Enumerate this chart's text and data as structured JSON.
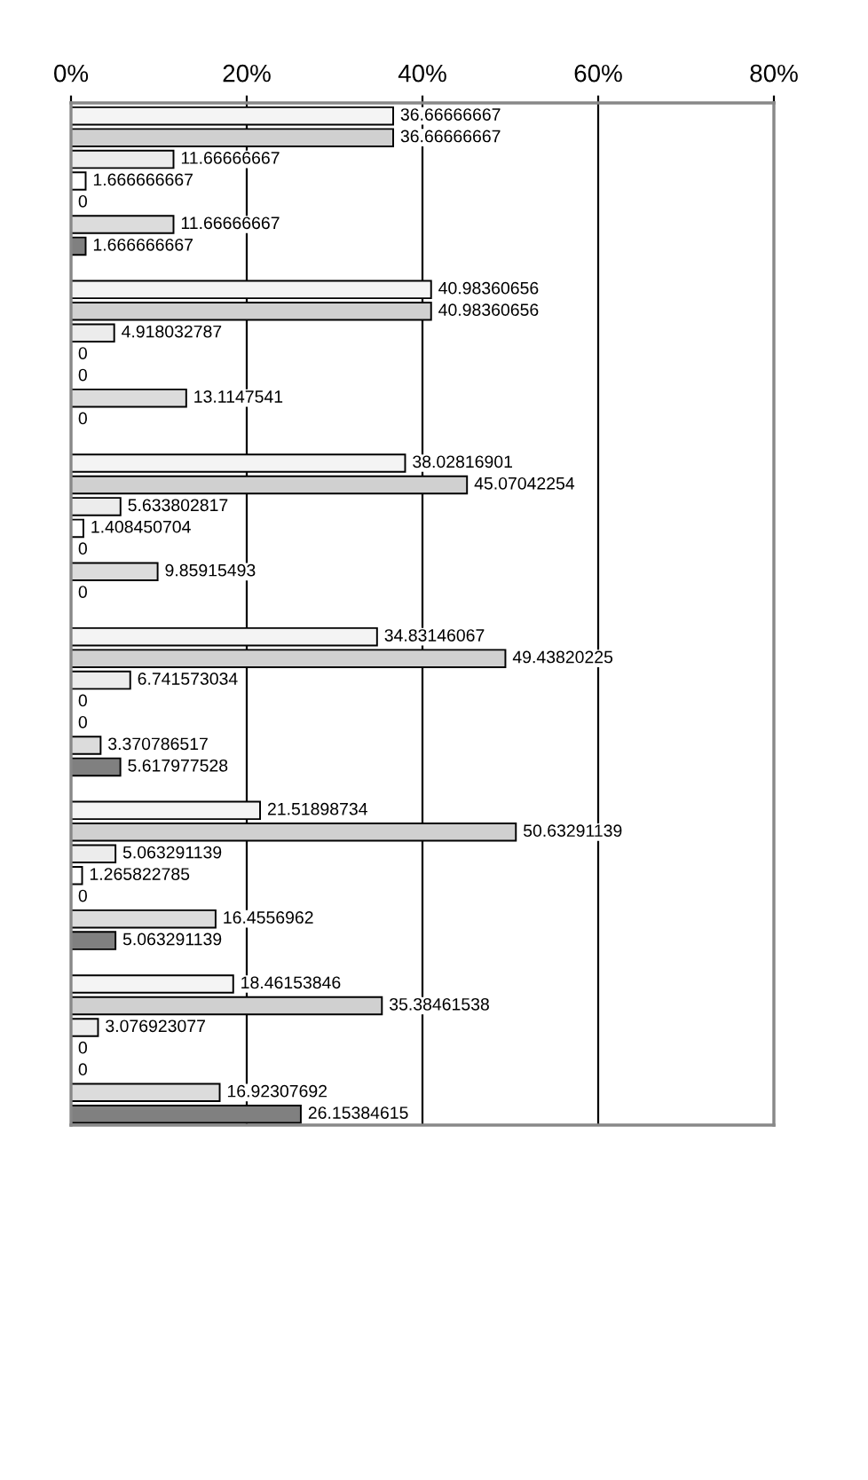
{
  "chart_data": {
    "type": "bar",
    "orientation": "horizontal",
    "categories": [
      null,
      null,
      null,
      null,
      null,
      null
    ],
    "series": [
      {
        "color": "#f4f4f4",
        "values": [
          36.66666667,
          40.98360656,
          38.02816901,
          34.83146067,
          21.51898734,
          18.46153846
        ]
      },
      {
        "color": "#d0d0d0",
        "values": [
          36.66666667,
          40.98360656,
          45.07042254,
          49.43820225,
          50.63291139,
          35.38461538
        ]
      },
      {
        "color": "#ececec",
        "values": [
          11.66666667,
          4.918032787,
          5.633802817,
          6.741573034,
          5.063291139,
          3.076923077
        ]
      },
      {
        "color": "#ffffff",
        "values": [
          1.666666667,
          0,
          1.408450704,
          0,
          1.265822785,
          0
        ]
      },
      {
        "color": "#ffffff",
        "values": [
          0,
          0,
          0,
          0,
          0,
          0
        ]
      },
      {
        "color": "#dcdcdc",
        "values": [
          11.66666667,
          13.1147541,
          9.85915493,
          3.370786517,
          16.4556962,
          16.92307692
        ]
      },
      {
        "color": "#808080",
        "values": [
          1.666666667,
          0,
          0,
          5.617977528,
          5.063291139,
          26.15384615
        ]
      }
    ],
    "xlim": [
      0,
      80
    ],
    "xticks": [
      {
        "value": 0,
        "label": "0%"
      },
      {
        "value": 20,
        "label": "20%"
      },
      {
        "value": 40,
        "label": "40%"
      },
      {
        "value": 60,
        "label": "60%"
      },
      {
        "value": 80,
        "label": "80%"
      }
    ],
    "grid": "x",
    "tick_labels": "x",
    "data_labels": true
  }
}
